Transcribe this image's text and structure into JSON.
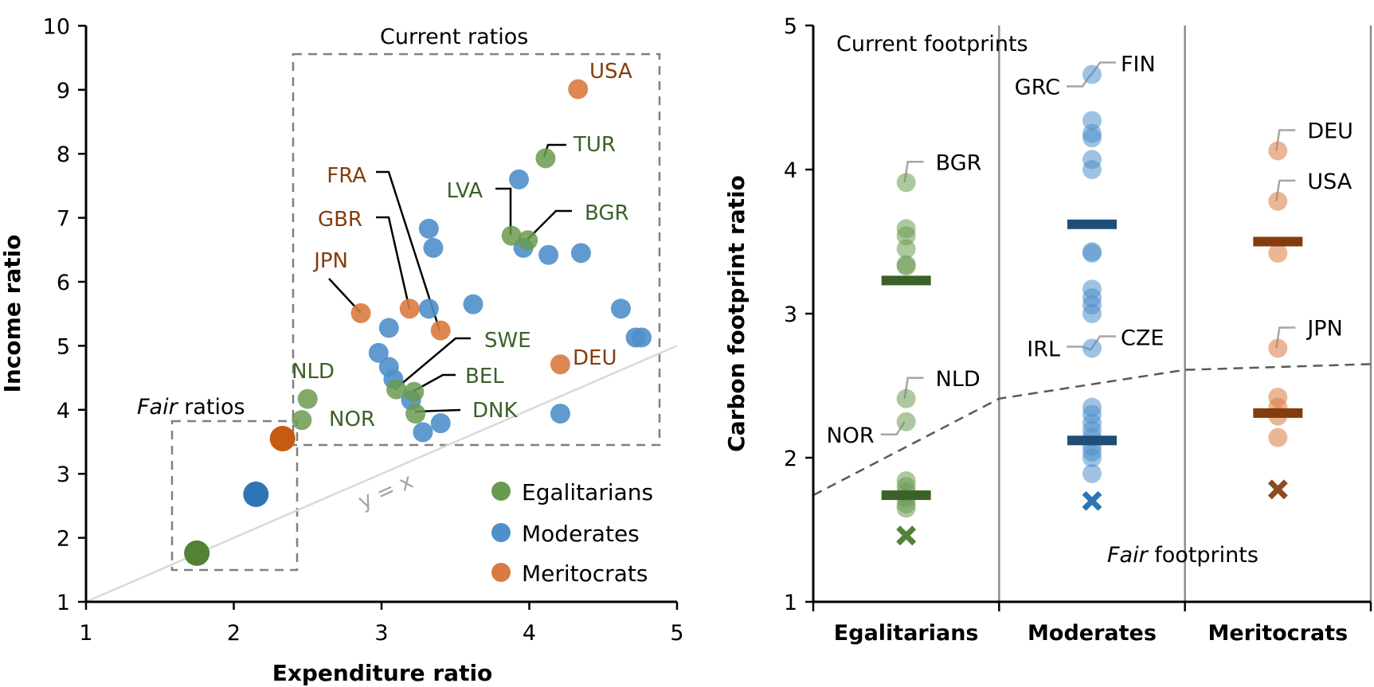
{
  "chart_data": [
    {
      "type": "scatter",
      "title": "",
      "xlabel": "Expenditure ratio",
      "ylabel": "Income ratio",
      "xlim": [
        1,
        5
      ],
      "ylim": [
        1,
        10
      ],
      "xticks": [
        "1",
        "2",
        "3",
        "4",
        "5"
      ],
      "yticks": [
        "1",
        "2",
        "3",
        "4",
        "5",
        "6",
        "7",
        "8",
        "9",
        "10"
      ],
      "grid": false,
      "legend": {
        "placement": "bottom-right",
        "entries": [
          {
            "name": "Egalitarians",
            "color": "#6a9a50"
          },
          {
            "name": "Moderates",
            "color": "#4f8fca"
          },
          {
            "name": "Meritocrats",
            "color": "#d97b40"
          }
        ]
      },
      "annotations": {
        "current_box": "Current ratios",
        "fair_box_italic": "Fair",
        "fair_box_rest": " ratios",
        "identity_line": "y = x"
      },
      "series": [
        {
          "name": "Egalitarians",
          "points": [
            {
              "x": 4.11,
              "y": 7.93,
              "label": "TUR"
            },
            {
              "x": 3.88,
              "y": 6.72,
              "label": "LVA"
            },
            {
              "x": 3.99,
              "y": 6.65,
              "label": "BGR"
            },
            {
              "x": 3.1,
              "y": 4.32,
              "label": "SWE"
            },
            {
              "x": 3.22,
              "y": 4.28,
              "label": "BEL"
            },
            {
              "x": 3.23,
              "y": 3.94,
              "label": "DNK"
            },
            {
              "x": 2.5,
              "y": 4.17,
              "label": "NLD"
            },
            {
              "x": 2.46,
              "y": 3.84,
              "label": "NOR"
            }
          ]
        },
        {
          "name": "Moderates",
          "points": [
            {
              "x": 3.93,
              "y": 7.6
            },
            {
              "x": 3.96,
              "y": 6.53
            },
            {
              "x": 4.13,
              "y": 6.42
            },
            {
              "x": 4.35,
              "y": 6.45
            },
            {
              "x": 3.32,
              "y": 6.83
            },
            {
              "x": 3.35,
              "y": 6.53
            },
            {
              "x": 3.32,
              "y": 5.58
            },
            {
              "x": 3.62,
              "y": 5.65
            },
            {
              "x": 4.62,
              "y": 5.58
            },
            {
              "x": 4.72,
              "y": 5.13
            },
            {
              "x": 4.76,
              "y": 5.13
            },
            {
              "x": 3.05,
              "y": 5.28
            },
            {
              "x": 2.98,
              "y": 4.89
            },
            {
              "x": 3.05,
              "y": 4.67
            },
            {
              "x": 3.08,
              "y": 4.48
            },
            {
              "x": 3.2,
              "y": 4.15
            },
            {
              "x": 3.4,
              "y": 3.79
            },
            {
              "x": 3.28,
              "y": 3.65
            },
            {
              "x": 4.21,
              "y": 3.94
            }
          ]
        },
        {
          "name": "Meritocrats",
          "points": [
            {
              "x": 4.33,
              "y": 9.01,
              "label": "USA"
            },
            {
              "x": 3.4,
              "y": 5.24,
              "label": "FRA"
            },
            {
              "x": 3.19,
              "y": 5.58,
              "label": "GBR"
            },
            {
              "x": 2.86,
              "y": 5.51,
              "label": "JPN"
            },
            {
              "x": 4.21,
              "y": 4.71,
              "label": "DEU"
            }
          ]
        },
        {
          "name": "Fair ratios",
          "points": [
            {
              "x": 1.75,
              "y": 1.76,
              "group": "Egalitarians"
            },
            {
              "x": 2.15,
              "y": 2.68,
              "group": "Moderates"
            },
            {
              "x": 2.33,
              "y": 3.55,
              "group": "Meritocrats"
            }
          ]
        }
      ]
    },
    {
      "type": "scatter",
      "title": "",
      "xlabel": "",
      "ylabel": "Carbon footprint ratio",
      "ylim": [
        1,
        5
      ],
      "yticks": [
        "1",
        "2",
        "3",
        "4",
        "5"
      ],
      "categories": [
        "Egalitarians",
        "Moderates",
        "Meritocrats"
      ],
      "grid": false,
      "annotations": {
        "current": "Current footprints",
        "fair_italic": "Fair",
        "fair_rest": " footprints"
      },
      "fair_threshold_line": {
        "x": [
          0,
          1,
          2,
          3
        ],
        "y": [
          1.74,
          2.41,
          2.61,
          2.65
        ]
      },
      "series": [
        {
          "name": "Egalitarians",
          "values": [
            3.91,
            3.59,
            3.54,
            3.45,
            3.34,
            3.33,
            2.41,
            2.25,
            1.84,
            1.8,
            1.76,
            1.72,
            1.68,
            1.65
          ],
          "high_mean": 3.23,
          "low_mean": 1.74,
          "fair": 1.46,
          "labels": [
            {
              "text": "BGR",
              "y": 3.91
            },
            {
              "text": "NLD",
              "y": 2.41
            },
            {
              "text": "NOR",
              "y": 2.25
            }
          ]
        },
        {
          "name": "Moderates",
          "values": [
            4.66,
            4.34,
            4.25,
            4.22,
            4.07,
            4.0,
            3.43,
            3.42,
            3.17,
            3.11,
            3.06,
            3.0,
            2.76,
            2.35,
            2.3,
            2.24,
            2.19,
            2.14,
            2.08,
            2.04,
            2.0,
            1.89
          ],
          "high_mean": 3.62,
          "low_mean": 2.12,
          "fair": 1.7,
          "labels": [
            {
              "text": "GRC",
              "y": 4.66
            },
            {
              "text": "FIN",
              "y": 4.66
            },
            {
              "text": "IRL",
              "y": 2.76
            },
            {
              "text": "CZE",
              "y": 2.76
            }
          ]
        },
        {
          "name": "Meritocrats",
          "values": [
            4.13,
            3.78,
            3.42,
            2.76,
            2.42,
            2.35,
            2.29,
            2.14
          ],
          "high_mean": 3.5,
          "low_mean": 2.31,
          "fair": 1.78,
          "labels": [
            {
              "text": "DEU",
              "y": 4.13
            },
            {
              "text": "USA",
              "y": 3.78
            },
            {
              "text": "JPN",
              "y": 2.76
            }
          ]
        }
      ]
    }
  ],
  "colors": {
    "egal": "#6a9a50",
    "egal_dark": "#3b6128",
    "egal_label": "#3b6128",
    "egal_fair": "#538135",
    "mod": "#4f8fca",
    "mod_dark": "#1f4e79",
    "mod_fair": "#2e75b6",
    "mer": "#d97b40",
    "mer_dark": "#843c0c",
    "mer_label": "#843c0c",
    "mer_fair": "#c55a11",
    "mer_x": "#8b4c20"
  }
}
